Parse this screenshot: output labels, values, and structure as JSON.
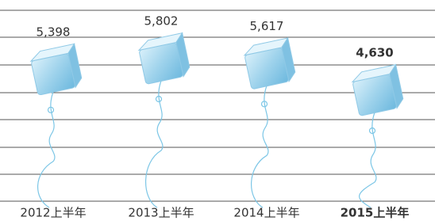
{
  "chart_data": {
    "type": "pictorial",
    "categories": [
      "2012上半年",
      "2013上半年",
      "2014上半年",
      "2015上半年"
    ],
    "values": [
      5398,
      5802,
      5617,
      4630
    ],
    "value_labels": [
      "5,398",
      "5,802",
      "5,617",
      "4,630"
    ],
    "color": "#9fd3ec"
  }
}
